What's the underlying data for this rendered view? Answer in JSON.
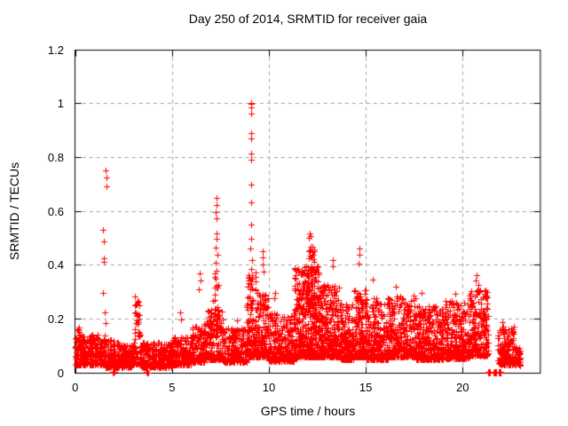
{
  "window_title": "Day 250 of 2014, SRMTID for receiver gaia",
  "chart_data": {
    "type": "scatter",
    "title": "Day 250 of 2014, SRMTID for receiver gaia",
    "xlabel": "GPS time / hours",
    "ylabel": "SRMTID / TECUs",
    "xlim": [
      0,
      24
    ],
    "ylim": [
      0,
      1.2
    ],
    "x_ticks": [
      0,
      5,
      10,
      15,
      20
    ],
    "x_tick_labels": [
      "0",
      "5",
      "10",
      "15",
      "20"
    ],
    "y_ticks": [
      0,
      0.2,
      0.4,
      0.6,
      0.8,
      1,
      1.2
    ],
    "y_tick_labels": [
      "0",
      "0.2",
      "0.4",
      "0.6",
      "0.8",
      "1",
      "1.2"
    ],
    "legend": "none",
    "grid": {
      "show": true,
      "style": "dashed",
      "color": "#a0a0a0"
    },
    "axis_color": "#000000",
    "marker": {
      "shape": "plus",
      "color": "#ff0000",
      "size": 7
    },
    "series_name": "SRMTID",
    "time_span_hours": [
      0,
      23
    ],
    "seed": 42,
    "band_segments": [
      [
        0.0,
        1.55,
        260,
        0.03,
        0.145,
        1.6
      ],
      [
        0.02,
        0.3,
        10,
        0.1,
        0.17,
        1.0
      ],
      [
        1.55,
        2.25,
        130,
        0.02,
        0.125,
        1.7
      ],
      [
        2.25,
        3.0,
        130,
        0.022,
        0.105,
        1.6
      ],
      [
        3.0,
        3.35,
        55,
        0.035,
        0.27,
        2.4
      ],
      [
        3.35,
        5.0,
        280,
        0.022,
        0.115,
        1.6
      ],
      [
        5.0,
        6.0,
        170,
        0.03,
        0.135,
        1.6
      ],
      [
        6.0,
        6.65,
        110,
        0.04,
        0.175,
        1.7
      ],
      [
        6.65,
        7.6,
        180,
        0.05,
        0.24,
        1.9
      ],
      [
        7.1,
        7.45,
        20,
        0.14,
        0.38,
        1.6
      ],
      [
        7.6,
        8.85,
        210,
        0.04,
        0.175,
        1.7
      ],
      [
        8.85,
        9.35,
        120,
        0.06,
        0.38,
        2.1
      ],
      [
        9.35,
        10.0,
        150,
        0.06,
        0.3,
        2.2
      ],
      [
        10.0,
        11.3,
        250,
        0.045,
        0.225,
        1.9
      ],
      [
        11.3,
        12.6,
        430,
        0.06,
        0.4,
        2.0
      ],
      [
        11.9,
        12.35,
        60,
        0.25,
        0.495,
        1.7
      ],
      [
        12.6,
        13.7,
        300,
        0.06,
        0.33,
        2.0
      ],
      [
        13.7,
        14.35,
        150,
        0.05,
        0.26,
        1.9
      ],
      [
        14.35,
        15.0,
        170,
        0.06,
        0.31,
        2.0
      ],
      [
        15.0,
        16.2,
        270,
        0.05,
        0.28,
        2.0
      ],
      [
        16.2,
        17.6,
        310,
        0.06,
        0.29,
        2.0
      ],
      [
        17.6,
        19.0,
        290,
        0.05,
        0.25,
        1.9
      ],
      [
        19.0,
        20.35,
        290,
        0.055,
        0.27,
        1.9
      ],
      [
        20.35,
        21.32,
        210,
        0.065,
        0.31,
        1.9
      ],
      [
        21.8,
        22.68,
        150,
        0.03,
        0.175,
        1.8
      ],
      [
        22.68,
        23.0,
        55,
        0.028,
        0.105,
        1.5
      ]
    ],
    "notable_points": [
      [
        1.59,
        0.754
      ],
      [
        1.6,
        0.727
      ],
      [
        1.595,
        0.694
      ],
      [
        1.45,
        0.532
      ],
      [
        1.46,
        0.489
      ],
      [
        1.47,
        0.427
      ],
      [
        1.47,
        0.414
      ],
      [
        1.44,
        0.3
      ],
      [
        1.52,
        0.225
      ],
      [
        1.56,
        0.185
      ],
      [
        3.08,
        0.285
      ],
      [
        3.12,
        0.255
      ],
      [
        3.1,
        0.225
      ],
      [
        3.15,
        0.195
      ],
      [
        5.44,
        0.225
      ],
      [
        5.47,
        0.2
      ],
      [
        6.42,
        0.37
      ],
      [
        6.46,
        0.345
      ],
      [
        6.38,
        0.31
      ],
      [
        7.28,
        0.65
      ],
      [
        7.3,
        0.625
      ],
      [
        7.27,
        0.6
      ],
      [
        7.29,
        0.575
      ],
      [
        7.31,
        0.52
      ],
      [
        7.28,
        0.5
      ],
      [
        7.26,
        0.468
      ],
      [
        7.32,
        0.44
      ],
      [
        7.25,
        0.41
      ],
      [
        7.3,
        0.382
      ],
      [
        7.24,
        0.352
      ],
      [
        7.33,
        0.318
      ],
      [
        8.35,
        0.195
      ],
      [
        9.07,
        1.005
      ],
      [
        9.09,
        1.0
      ],
      [
        9.08,
        0.988
      ],
      [
        9.075,
        0.963
      ],
      [
        9.08,
        0.893
      ],
      [
        9.09,
        0.872
      ],
      [
        9.07,
        0.815
      ],
      [
        9.085,
        0.793
      ],
      [
        9.09,
        0.7
      ],
      [
        9.07,
        0.635
      ],
      [
        9.08,
        0.552
      ],
      [
        9.1,
        0.5
      ],
      [
        9.05,
        0.462
      ],
      [
        9.11,
        0.42
      ],
      [
        9.06,
        0.388
      ],
      [
        9.12,
        0.352
      ],
      [
        9.04,
        0.322
      ],
      [
        9.66,
        0.452
      ],
      [
        9.7,
        0.43
      ],
      [
        9.68,
        0.405
      ],
      [
        9.72,
        0.378
      ],
      [
        10.3,
        0.3
      ],
      [
        10.26,
        0.278
      ],
      [
        12.1,
        0.52
      ],
      [
        12.15,
        0.51
      ],
      [
        12.05,
        0.502
      ],
      [
        13.32,
        0.42
      ],
      [
        13.28,
        0.398
      ],
      [
        14.65,
        0.462
      ],
      [
        14.67,
        0.44
      ],
      [
        14.63,
        0.408
      ],
      [
        15.35,
        0.348
      ],
      [
        16.55,
        0.322
      ],
      [
        17.9,
        0.3
      ],
      [
        19.6,
        0.295
      ],
      [
        20.72,
        0.365
      ],
      [
        20.68,
        0.345
      ],
      [
        20.8,
        0.328
      ],
      [
        22.05,
        0.188
      ],
      [
        22.1,
        0.172
      ]
    ],
    "zero_runs": [
      [
        1.9,
        2.04,
        6
      ],
      [
        3.64,
        3.78,
        4
      ],
      [
        21.3,
        21.44,
        22
      ],
      [
        21.58,
        21.72,
        22
      ],
      [
        21.86,
        22.0,
        22
      ]
    ]
  }
}
